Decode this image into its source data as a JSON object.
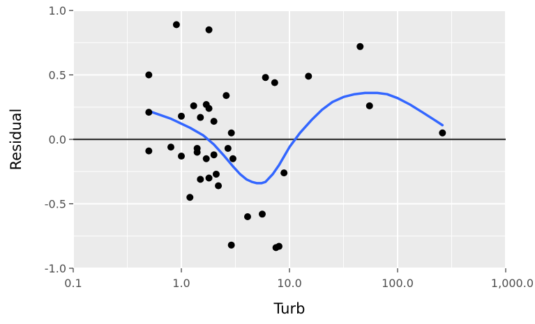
{
  "chart_data": {
    "type": "scatter",
    "title": "",
    "xlabel": "Turb",
    "ylabel": "Residual",
    "x_scale": "log10",
    "xlim": [
      0.1,
      1000
    ],
    "ylim": [
      -1.0,
      1.0
    ],
    "x_ticks": [
      0.1,
      1,
      10,
      100,
      1000
    ],
    "x_tick_labels": [
      "0.1",
      "1.0",
      "10.0",
      "100.0",
      "1,000.0"
    ],
    "y_ticks": [
      -1.0,
      -0.5,
      0.0,
      0.5,
      1.0
    ],
    "y_tick_labels": [
      "-1.0",
      "-0.5",
      "0.0",
      "0.5",
      "1.0"
    ],
    "grid": true,
    "reference_line": {
      "y": 0.0,
      "color": "#333333"
    },
    "colors": {
      "panel": "#ebebeb",
      "grid": "#ffffff",
      "points": "#000000",
      "smooth": "#3366ff"
    },
    "series": [
      {
        "kind": "points",
        "x": [
          0.5,
          0.5,
          0.5,
          0.9,
          1.0,
          0.8,
          1.0,
          1.2,
          1.3,
          1.4,
          1.4,
          1.5,
          1.5,
          1.7,
          1.7,
          1.8,
          1.8,
          1.8,
          2.0,
          2.0,
          2.1,
          2.2,
          2.6,
          2.7,
          2.9,
          3.0,
          2.9,
          4.1,
          5.6,
          6.0,
          7.3,
          7.5,
          8.0,
          8.9,
          15,
          45,
          55,
          260
        ],
        "y": [
          0.5,
          0.21,
          -0.09,
          0.89,
          0.18,
          -0.06,
          -0.13,
          -0.45,
          0.26,
          -0.07,
          -0.1,
          0.17,
          -0.31,
          0.27,
          -0.15,
          0.85,
          0.24,
          -0.3,
          0.14,
          -0.12,
          -0.27,
          -0.36,
          0.34,
          -0.07,
          0.05,
          -0.15,
          -0.82,
          -0.6,
          -0.58,
          0.48,
          0.44,
          -0.84,
          -0.83,
          -0.26,
          0.49,
          0.72,
          0.26,
          0.05
        ]
      },
      {
        "kind": "smooth",
        "x": [
          0.5,
          0.8,
          1.2,
          1.6,
          2.0,
          2.5,
          3.0,
          3.5,
          4.0,
          4.5,
          5.0,
          5.5,
          6.0,
          7.0,
          8.0,
          10,
          12.5,
          16,
          20,
          25,
          32,
          40,
          50,
          65,
          80,
          100,
          130,
          170,
          220,
          260
        ],
        "y": [
          0.22,
          0.16,
          0.09,
          0.03,
          -0.04,
          -0.13,
          -0.21,
          -0.27,
          -0.31,
          -0.33,
          -0.34,
          -0.34,
          -0.33,
          -0.27,
          -0.2,
          -0.06,
          0.05,
          0.15,
          0.23,
          0.29,
          0.33,
          0.35,
          0.36,
          0.36,
          0.35,
          0.32,
          0.27,
          0.21,
          0.15,
          0.11
        ]
      }
    ]
  }
}
